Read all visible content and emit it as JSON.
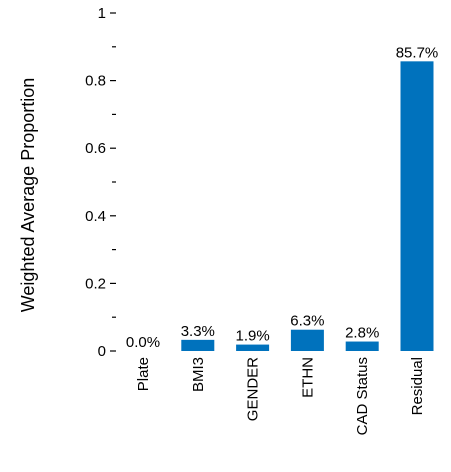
{
  "chart_data": {
    "type": "bar",
    "title": "",
    "xlabel": "",
    "ylabel": "Weighted Average Proportion",
    "ylim": [
      0,
      1
    ],
    "yticks": [
      "0",
      "0.2",
      "0.4",
      "0.6",
      "0.8",
      "1"
    ],
    "categories": [
      "Plate",
      "BMI3",
      "GENDER",
      "ETHN",
      "CAD Status",
      "Residual"
    ],
    "values": [
      0.0,
      0.033,
      0.019,
      0.063,
      0.028,
      0.857
    ],
    "data_labels": [
      "0.0%",
      "3.3%",
      "1.9%",
      "6.3%",
      "2.8%",
      "85.7%"
    ],
    "bar_color": "#0072bd",
    "grid": false
  }
}
